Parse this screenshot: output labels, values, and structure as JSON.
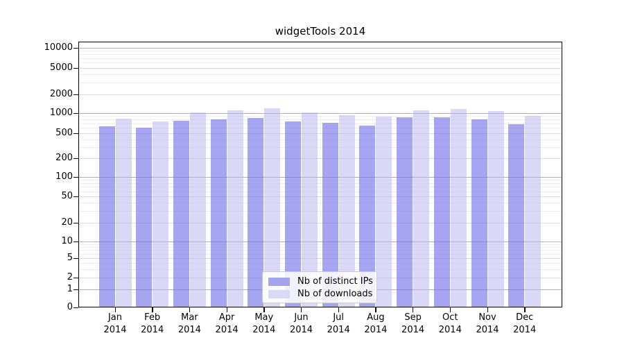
{
  "chart_data": {
    "type": "bar",
    "title": "widgetTools 2014",
    "categories": [
      "Jan 2014",
      "Feb 2014",
      "Mar 2014",
      "Apr 2014",
      "May 2014",
      "Jun 2014",
      "Jul 2014",
      "Aug 2014",
      "Sep 2014",
      "Oct 2014",
      "Nov 2014",
      "Dec 2014"
    ],
    "series": [
      {
        "name": "Nb of distinct IPs",
        "color": "rgba(110,110,232,0.62)",
        "solid_color": "#a4a4ee",
        "values": [
          630,
          605,
          765,
          810,
          850,
          760,
          715,
          645,
          870,
          870,
          805,
          680
        ]
      },
      {
        "name": "Nb of downloads",
        "color": "rgba(180,180,240,0.50)",
        "solid_color": "#d9d9f8",
        "values": [
          830,
          750,
          1030,
          1120,
          1190,
          1030,
          925,
          890,
          1100,
          1160,
          1080,
          900
        ]
      }
    ],
    "xlabel": "",
    "ylabel": "",
    "yscale": "symlog",
    "yticks": [
      0,
      1,
      2,
      5,
      10,
      20,
      50,
      100,
      200,
      500,
      1000,
      2000,
      5000,
      10000
    ],
    "ylim": [
      0,
      12000
    ],
    "grid": true,
    "legend_position": "bottom-center-inside",
    "frame": "full-box",
    "background": "#ffffff",
    "grid_major_color": "#b0b0b0",
    "grid_minor_color": "#eeeeee"
  }
}
